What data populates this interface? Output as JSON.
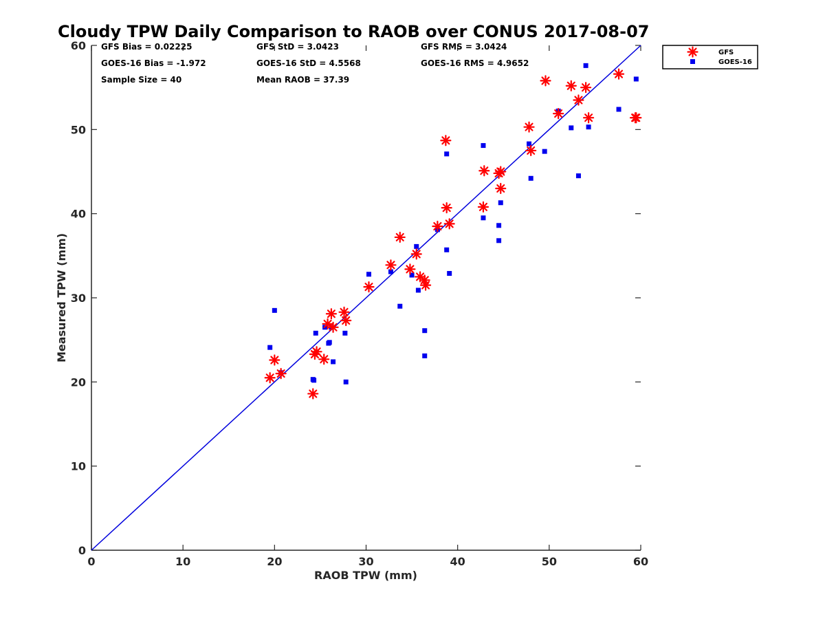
{
  "stats": {
    "gfs_bias": "GFS Bias = 0.02225",
    "gfs_std": "GFS StD = 3.0423",
    "gfs_rms": "GFS RMS = 3.0424",
    "goes_bias": "GOES-16 Bias = -1.972",
    "goes_std": "GOES-16 StD = 4.5568",
    "goes_rms": "GOES-16 RMS = 4.9652",
    "sample_size": "Sample Size = 40",
    "mean_raob": "Mean RAOB = 37.39"
  },
  "chart_data": {
    "type": "scatter",
    "title": "Cloudy TPW Daily Comparison to RAOB over CONUS 2017-08-07",
    "xlabel": "RAOB TPW (mm)",
    "ylabel": "Measured TPW (mm)",
    "xlim": [
      0,
      60
    ],
    "ylim": [
      0,
      60
    ],
    "xticks": [
      0,
      10,
      20,
      30,
      40,
      50,
      60
    ],
    "yticks": [
      0,
      10,
      20,
      30,
      40,
      50,
      60
    ],
    "grid": false,
    "legend_position": "top-right outside",
    "reference_line": {
      "x": [
        0,
        60
      ],
      "y": [
        0,
        60
      ],
      "color": "#0000dd"
    },
    "series": [
      {
        "name": "GFS",
        "marker": "asterisk",
        "color": "#ff0000",
        "x": [
          19.5,
          20.0,
          20.7,
          24.2,
          24.4,
          24.6,
          25.4,
          25.8,
          26.2,
          26.4,
          27.6,
          27.8,
          30.3,
          32.7,
          33.7,
          34.8,
          35.5,
          35.9,
          36.4,
          36.5,
          37.8,
          38.7,
          38.8,
          39.1,
          42.8,
          42.9,
          44.5,
          44.7,
          44.7,
          47.8,
          48.0,
          49.6,
          51.0,
          52.4,
          53.2,
          54.0,
          54.3,
          57.6,
          59.5,
          59.4
        ],
        "y": [
          20.5,
          22.6,
          21.0,
          18.6,
          23.3,
          23.6,
          22.7,
          26.9,
          28.1,
          26.5,
          28.3,
          27.3,
          31.3,
          33.9,
          37.2,
          33.4,
          35.2,
          32.5,
          32.1,
          31.5,
          38.5,
          48.7,
          40.7,
          38.8,
          40.8,
          45.1,
          44.8,
          45.0,
          43.0,
          50.3,
          47.5,
          55.8,
          51.9,
          55.2,
          53.5,
          55.0,
          51.4,
          56.6,
          51.4,
          51.4
        ]
      },
      {
        "name": "GOES-16",
        "marker": "square",
        "color": "#0000ee",
        "x": [
          19.5,
          20.0,
          20.7,
          24.2,
          24.3,
          24.5,
          25.5,
          25.9,
          26.0,
          26.2,
          26.4,
          27.7,
          27.8,
          30.3,
          32.7,
          33.7,
          35.0,
          35.5,
          35.7,
          36.4,
          36.4,
          37.8,
          38.8,
          38.8,
          39.1,
          42.8,
          42.8,
          44.5,
          44.5,
          44.7,
          47.8,
          48.0,
          49.5,
          51.0,
          52.4,
          53.2,
          54.0,
          54.3,
          57.6,
          59.5
        ],
        "y": [
          24.1,
          28.5,
          21.1,
          20.3,
          20.2,
          25.8,
          26.5,
          24.6,
          24.7,
          26.5,
          22.4,
          25.8,
          20.0,
          32.8,
          33.1,
          29.0,
          32.7,
          36.1,
          30.9,
          26.1,
          23.1,
          38.1,
          35.7,
          47.1,
          32.9,
          48.1,
          39.5,
          38.6,
          36.8,
          41.3,
          48.3,
          44.2,
          47.4,
          52.2,
          50.2,
          44.5,
          57.6,
          50.3,
          52.4,
          56.0
        ]
      }
    ]
  }
}
